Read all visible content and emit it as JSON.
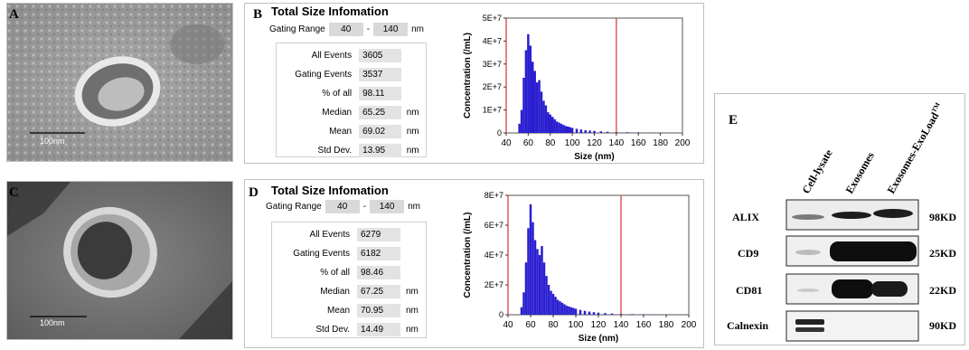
{
  "panels": {
    "a": {
      "label": "A",
      "scale_bar": "100nm"
    },
    "b": {
      "label": "B"
    },
    "c": {
      "label": "C",
      "scale_bar": "100nm"
    },
    "d": {
      "label": "D"
    },
    "e": {
      "label": "E"
    }
  },
  "nta": [
    {
      "title": "Total Size Infomation",
      "gating_label": "Gating Range",
      "gating_low": "40",
      "gating_dash": "-",
      "gating_high": "140",
      "gating_unit": "nm",
      "stats": [
        {
          "label": "All  Events",
          "value": "3605",
          "unit": ""
        },
        {
          "label": "Gating Events",
          "value": "3537",
          "unit": ""
        },
        {
          "label": "% of all",
          "value": "98.11",
          "unit": ""
        },
        {
          "label": "Median",
          "value": "65.25",
          "unit": "nm"
        },
        {
          "label": "Mean",
          "value": "69.02",
          "unit": "nm"
        },
        {
          "label": "Std Dev.",
          "value": "13.95",
          "unit": "nm"
        }
      ]
    },
    {
      "title": "Total Size Infomation",
      "gating_label": "Gating Range",
      "gating_low": "40",
      "gating_dash": "-",
      "gating_high": "140",
      "gating_unit": "nm",
      "stats": [
        {
          "label": "All  Events",
          "value": "6279",
          "unit": ""
        },
        {
          "label": "Gating Events",
          "value": "6182",
          "unit": ""
        },
        {
          "label": "% of all",
          "value": "98.46",
          "unit": ""
        },
        {
          "label": "Median",
          "value": "67.25",
          "unit": "nm"
        },
        {
          "label": "Mean",
          "value": "70.95",
          "unit": "nm"
        },
        {
          "label": "Std Dev.",
          "value": "14.49",
          "unit": "nm"
        }
      ]
    }
  ],
  "chart_data": [
    {
      "type": "bar",
      "xlabel": "Size (nm)",
      "ylabel": "Concentration (/mL)",
      "xlim": [
        40,
        200
      ],
      "ylim": [
        0,
        50000000
      ],
      "xticks": [
        "40",
        "60",
        "80",
        "100",
        "120",
        "140",
        "160",
        "180",
        "200"
      ],
      "yticks": [
        "0",
        "1E+7",
        "2E+7",
        "3E+7",
        "4E+7",
        "5E+7"
      ],
      "gate_lines": [
        40,
        140
      ],
      "bar_color": "#2a1fd0",
      "gate_color": "#e03030",
      "x": [
        52,
        54,
        56,
        58,
        60,
        62,
        64,
        66,
        68,
        70,
        72,
        74,
        76,
        78,
        80,
        82,
        84,
        86,
        88,
        90,
        92,
        94,
        96,
        98,
        100,
        104,
        108,
        112,
        116,
        120,
        126,
        132,
        140,
        150,
        160,
        170,
        180
      ],
      "values": [
        4000000,
        10000000,
        24000000,
        36000000,
        43000000,
        38000000,
        31000000,
        27000000,
        22000000,
        23000000,
        18000000,
        14000000,
        12000000,
        9000000,
        8000000,
        7000000,
        6000000,
        5000000,
        4500000,
        4000000,
        3500000,
        3000000,
        2800000,
        2500000,
        2200000,
        1800000,
        1500000,
        1200000,
        1000000,
        900000,
        700000,
        500000,
        400000,
        300000,
        250000,
        150000,
        100000
      ]
    },
    {
      "type": "bar",
      "xlabel": "Size (nm)",
      "ylabel": "Concentration (/mL)",
      "xlim": [
        40,
        200
      ],
      "ylim": [
        0,
        80000000
      ],
      "xticks": [
        "40",
        "60",
        "80",
        "100",
        "120",
        "140",
        "160",
        "180",
        "200"
      ],
      "yticks": [
        "0",
        "2E+7",
        "4E+7",
        "6E+7",
        "8E+7"
      ],
      "gate_lines": [
        40,
        140
      ],
      "bar_color": "#2a1fd0",
      "gate_color": "#e03030",
      "x": [
        52,
        54,
        56,
        58,
        60,
        62,
        64,
        66,
        68,
        70,
        72,
        74,
        76,
        78,
        80,
        82,
        84,
        86,
        88,
        90,
        92,
        94,
        96,
        98,
        100,
        104,
        108,
        112,
        116,
        120,
        126,
        132,
        140,
        150,
        160,
        170,
        180
      ],
      "values": [
        5000000,
        15000000,
        35000000,
        58000000,
        74000000,
        62000000,
        50000000,
        44000000,
        40000000,
        46000000,
        35000000,
        26000000,
        20000000,
        16000000,
        14000000,
        12000000,
        10000000,
        9000000,
        8000000,
        7000000,
        6000000,
        5500000,
        5000000,
        4500000,
        4000000,
        3200000,
        2600000,
        2100000,
        1700000,
        1400000,
        1100000,
        800000,
        600000,
        400000,
        300000,
        200000,
        150000
      ]
    }
  ],
  "western_blot": {
    "columns": [
      "Cell-lysate",
      "Exosomes",
      "Exosomes-ExoLoad"
    ],
    "superscript": "TM",
    "rows": [
      {
        "protein": "ALIX",
        "size": "98KD"
      },
      {
        "protein": "CD9",
        "size": "25KD"
      },
      {
        "protein": "CD81",
        "size": "22KD"
      },
      {
        "protein": "Calnexin",
        "size": "90KD"
      }
    ]
  }
}
